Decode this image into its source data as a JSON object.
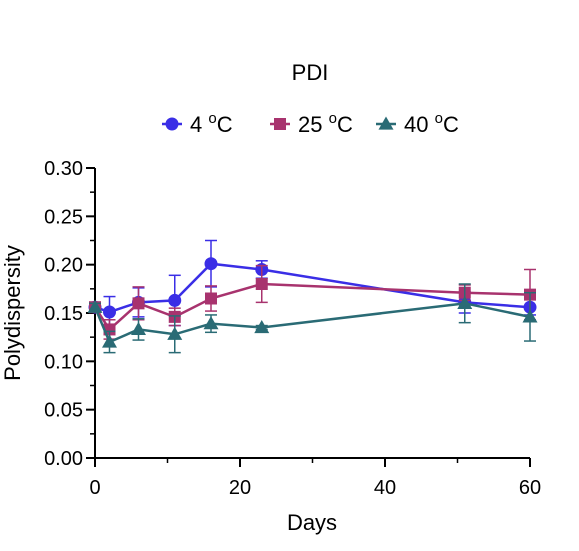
{
  "chart_data": {
    "type": "line",
    "title": "PDI",
    "xlabel": "Days",
    "ylabel": "Polydispersity",
    "xlim": [
      0,
      60
    ],
    "ylim": [
      0,
      0.3
    ],
    "x_ticks": [
      "0",
      "20",
      "40",
      "60"
    ],
    "x_tick_values": [
      0,
      20,
      40,
      60
    ],
    "y_ticks": [
      "0.00",
      "0.05",
      "0.10",
      "0.15",
      "0.20",
      "0.25",
      "0.30"
    ],
    "y_tick_values": [
      0,
      0.05,
      0.1,
      0.15,
      0.2,
      0.25,
      0.3
    ],
    "grid": false,
    "legend_position": "top",
    "series": [
      {
        "name": "4 °C",
        "name_parts": {
          "value": "4",
          "deg": "o",
          "unit": "C"
        },
        "marker": "circle",
        "color": "#3a2ee6",
        "x": [
          0,
          2,
          6,
          11,
          16,
          23,
          51,
          60
        ],
        "y": [
          0.156,
          0.151,
          0.161,
          0.163,
          0.201,
          0.195,
          0.161,
          0.156
        ],
        "err": [
          0.004,
          0.016,
          0.015,
          0.026,
          0.024,
          0.009,
          0.011,
          0.008
        ]
      },
      {
        "name": "25 °C",
        "name_parts": {
          "value": "25",
          "deg": "o",
          "unit": "C"
        },
        "marker": "square",
        "color": "#a8336e",
        "x": [
          0,
          2,
          6,
          11,
          16,
          23,
          51,
          60
        ],
        "y": [
          0.156,
          0.133,
          0.16,
          0.146,
          0.165,
          0.18,
          0.171,
          0.169
        ],
        "err": [
          0.004,
          0.01,
          0.017,
          0.009,
          0.013,
          0.019,
          0.008,
          0.026
        ]
      },
      {
        "name": "40 °C",
        "name_parts": {
          "value": "40",
          "deg": "o",
          "unit": "C"
        },
        "marker": "triangle",
        "color": "#2a6b75",
        "x": [
          0,
          2,
          6,
          11,
          16,
          23,
          51,
          60
        ],
        "y": [
          0.156,
          0.12,
          0.133,
          0.128,
          0.139,
          0.135,
          0.16,
          0.146
        ],
        "err": [
          0.004,
          0.011,
          0.011,
          0.019,
          0.009,
          0.002,
          0.02,
          0.025
        ]
      }
    ]
  }
}
